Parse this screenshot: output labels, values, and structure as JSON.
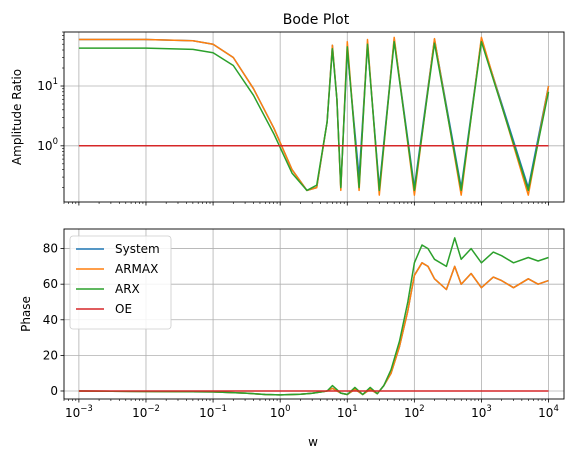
{
  "title": "Bode Plot",
  "chart_data": [
    {
      "type": "line",
      "panel": "top",
      "title": "Bode Plot",
      "xlabel": "",
      "ylabel": "Amplitude Ratio",
      "x_scale": "log",
      "y_scale": "log",
      "xlim": [
        0.0006,
        17000
      ],
      "ylim": [
        0.115,
        80
      ],
      "ytick_labels": [
        {
          "base": "10",
          "exp": "1",
          "value": 10
        },
        {
          "base": "10",
          "exp": "0",
          "value": 1
        }
      ],
      "grid": true,
      "series": [
        {
          "name": "System",
          "color": "#1f77b4",
          "x": [
            0.001,
            0.01,
            0.05,
            0.1,
            0.2,
            0.4,
            0.8,
            1.5,
            2.5,
            3.5,
            5,
            6,
            7,
            8,
            10,
            15,
            20,
            30,
            50,
            100,
            200,
            500,
            1000,
            5000,
            10000
          ],
          "y": [
            60,
            60,
            57,
            50,
            30,
            9,
            2.0,
            0.4,
            0.18,
            0.2,
            2.5,
            48,
            6,
            0.2,
            40,
            0.3,
            50,
            0.2,
            60,
            0.2,
            60,
            0.2,
            60,
            0.2,
            10
          ]
        },
        {
          "name": "ARMAX",
          "color": "#ff7f0e",
          "x": [
            0.001,
            0.01,
            0.05,
            0.1,
            0.2,
            0.4,
            0.8,
            1.5,
            2.5,
            3.5,
            5,
            6,
            7,
            8,
            10,
            15,
            20,
            30,
            50,
            100,
            200,
            500,
            1000,
            5000,
            10000
          ],
          "y": [
            60,
            60,
            57,
            50,
            30,
            9,
            2.0,
            0.4,
            0.18,
            0.2,
            2.5,
            48,
            6,
            0.18,
            55,
            0.18,
            60,
            0.15,
            65,
            0.15,
            62,
            0.15,
            65,
            0.15,
            10
          ]
        },
        {
          "name": "ARX",
          "color": "#2ca02c",
          "x": [
            0.001,
            0.01,
            0.05,
            0.1,
            0.2,
            0.4,
            0.8,
            1.5,
            2.5,
            3.5,
            5,
            6,
            7,
            8,
            10,
            15,
            20,
            30,
            50,
            100,
            200,
            500,
            1000,
            5000,
            10000
          ],
          "y": [
            43,
            43,
            41,
            36,
            22,
            7,
            1.6,
            0.35,
            0.18,
            0.22,
            2.5,
            42,
            6,
            0.2,
            45,
            0.2,
            50,
            0.18,
            55,
            0.18,
            52,
            0.18,
            55,
            0.18,
            8
          ]
        },
        {
          "name": "OE",
          "color": "#d62728",
          "x": [
            0.001,
            10000
          ],
          "y": [
            1,
            1
          ]
        }
      ]
    },
    {
      "type": "line",
      "panel": "bottom",
      "title": "",
      "xlabel": "w",
      "ylabel": "Phase",
      "x_scale": "log",
      "y_scale": "linear",
      "xlim": [
        0.0006,
        17000
      ],
      "ylim": [
        -4.5,
        91
      ],
      "ytick_labels": [
        {
          "text": "0",
          "value": 0
        },
        {
          "text": "20",
          "value": 20
        },
        {
          "text": "40",
          "value": 40
        },
        {
          "text": "60",
          "value": 60
        },
        {
          "text": "80",
          "value": 80
        }
      ],
      "xtick_labels": [
        {
          "base": "10",
          "exp": "−3",
          "value": 0.001
        },
        {
          "base": "10",
          "exp": "−2",
          "value": 0.01
        },
        {
          "base": "10",
          "exp": "−1",
          "value": 0.1
        },
        {
          "base": "10",
          "exp": "0",
          "value": 1
        },
        {
          "base": "10",
          "exp": "1",
          "value": 10
        },
        {
          "base": "10",
          "exp": "2",
          "value": 100
        },
        {
          "base": "10",
          "exp": "3",
          "value": 1000
        },
        {
          "base": "10",
          "exp": "4",
          "value": 10000
        }
      ],
      "grid": true,
      "legend_position": "upper-left",
      "legend": [
        "System",
        "ARMAX",
        "ARX",
        "OE"
      ],
      "series": [
        {
          "name": "System",
          "color": "#1f77b4",
          "x": [
            0.001,
            0.1,
            0.3,
            0.6,
            1,
            2,
            3,
            5,
            6,
            8,
            10,
            13,
            17,
            22,
            28,
            35,
            45,
            60,
            80,
            100,
            130,
            160,
            200,
            300,
            400,
            500,
            700,
            1000,
            1500,
            2000,
            3000,
            5000,
            7000,
            10000
          ],
          "y": [
            0,
            -0.5,
            -1.2,
            -2,
            -2.2,
            -1.8,
            -1.3,
            0,
            1.5,
            -1.2,
            -2,
            1,
            -2,
            1,
            -1.5,
            3,
            10,
            25,
            45,
            65,
            72,
            70,
            63,
            57,
            70,
            60,
            66,
            58,
            64,
            62,
            58,
            63,
            60,
            62
          ]
        },
        {
          "name": "ARMAX",
          "color": "#ff7f0e",
          "x": [
            0.001,
            0.1,
            0.3,
            0.6,
            1,
            2,
            3,
            5,
            6,
            8,
            10,
            13,
            17,
            22,
            28,
            35,
            45,
            60,
            80,
            100,
            130,
            160,
            200,
            300,
            400,
            500,
            700,
            1000,
            1500,
            2000,
            3000,
            5000,
            7000,
            10000
          ],
          "y": [
            0,
            -0.5,
            -1.2,
            -2,
            -2.2,
            -1.8,
            -1.3,
            0,
            1.5,
            -1.2,
            -2,
            1,
            -2,
            1,
            -1.5,
            3,
            10,
            25,
            45,
            65,
            72,
            70,
            63,
            57,
            70,
            60,
            66,
            58,
            64,
            62,
            58,
            63,
            60,
            62
          ]
        },
        {
          "name": "ARX",
          "color": "#2ca02c",
          "x": [
            0.001,
            0.1,
            0.3,
            0.6,
            1,
            2,
            3,
            5,
            6,
            8,
            10,
            13,
            17,
            22,
            28,
            35,
            45,
            60,
            80,
            100,
            130,
            160,
            200,
            300,
            400,
            500,
            700,
            1000,
            1500,
            2000,
            3000,
            5000,
            7000,
            10000
          ],
          "y": [
            0,
            -0.5,
            -1.2,
            -2,
            -2.2,
            -1.8,
            -1.3,
            0,
            3,
            -1.2,
            -2,
            2,
            -2,
            2,
            -1.5,
            3,
            12,
            28,
            50,
            72,
            82,
            80,
            74,
            70,
            86,
            74,
            80,
            72,
            78,
            76,
            72,
            75,
            73,
            75
          ]
        },
        {
          "name": "OE",
          "color": "#d62728",
          "x": [
            0.001,
            10000
          ],
          "y": [
            0,
            0
          ]
        }
      ]
    }
  ]
}
